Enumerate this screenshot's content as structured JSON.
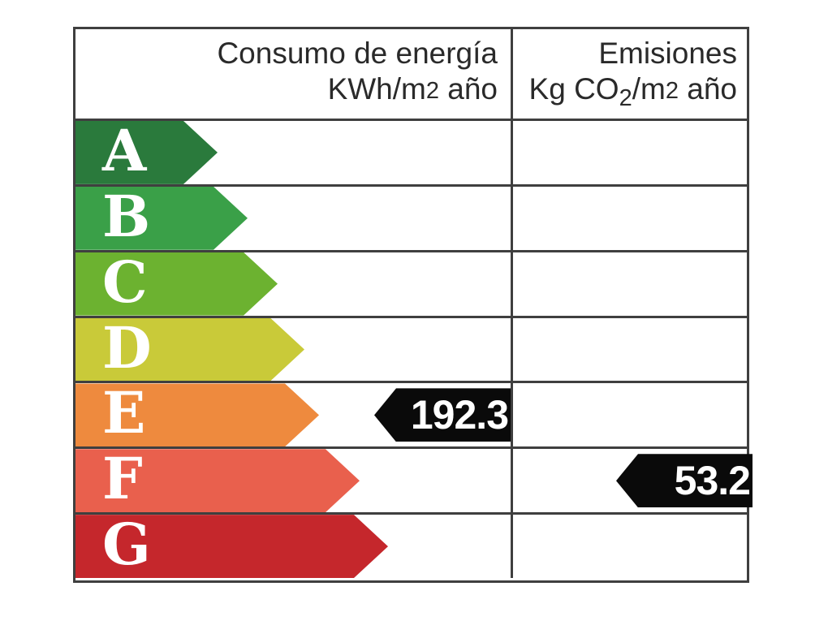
{
  "header": {
    "left": {
      "line1": "Consumo de energía",
      "line2_pre": "KWh/m",
      "line2_digit": "2",
      "line2_post": " año"
    },
    "right": {
      "line1": "Emisiones",
      "line2_pre": "Kg CO",
      "line2_sub": "2",
      "line2_mid": "/m",
      "line2_digit": "2",
      "line2_post": " año"
    }
  },
  "ratings": [
    {
      "letter": "A",
      "color": "#2a7a3c",
      "arrow_width": 175
    },
    {
      "letter": "B",
      "color": "#3aa048",
      "arrow_width": 212
    },
    {
      "letter": "C",
      "color": "#6cb230",
      "arrow_width": 249
    },
    {
      "letter": "D",
      "color": "#c9ca39",
      "arrow_width": 282
    },
    {
      "letter": "E",
      "color": "#ee8a3e",
      "arrow_width": 300
    },
    {
      "letter": "F",
      "color": "#e9604d",
      "arrow_width": 350
    },
    {
      "letter": "G",
      "color": "#c5272c",
      "arrow_width": 385
    }
  ],
  "values": {
    "consumo": {
      "value": "192.3",
      "rating": "E"
    },
    "emisiones": {
      "value": "53.2",
      "rating": "F"
    }
  },
  "colors": {
    "background": "#ffffff",
    "border": "#3f3f3f",
    "header_text": "#2a2a2a",
    "letter_text": "#ffffff",
    "value_arrow": "#0a0a0a",
    "value_text": "#ffffff"
  },
  "chart_data": {
    "type": "bar",
    "title": "Etiqueta de eficiencia energética",
    "categories": [
      "A",
      "B",
      "C",
      "D",
      "E",
      "F",
      "G"
    ],
    "bar_colors": [
      "#2a7a3c",
      "#3aa048",
      "#6cb230",
      "#c9ca39",
      "#ee8a3e",
      "#e9604d",
      "#c5272c"
    ],
    "series": [
      {
        "name": "Consumo de energía KWh/m2 año",
        "value": 192.3,
        "rating": "E"
      },
      {
        "name": "Emisiones Kg CO2/m2 año",
        "value": 53.2,
        "rating": "F"
      }
    ],
    "legend": "none",
    "grid": "table-borders"
  }
}
